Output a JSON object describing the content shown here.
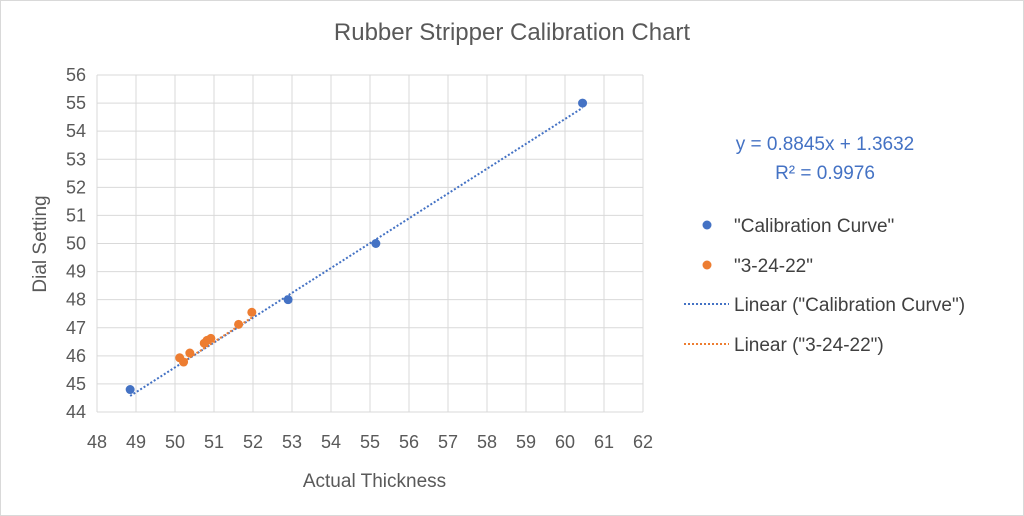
{
  "chart_data": {
    "type": "scatter",
    "title": "Rubber Stripper Calibration Chart",
    "xlabel": "Actual Thickness",
    "ylabel": "Dial Setting",
    "xlim": [
      48,
      62
    ],
    "ylim": [
      44,
      56
    ],
    "x_ticks": [
      48,
      49,
      50,
      51,
      52,
      53,
      54,
      55,
      56,
      57,
      58,
      59,
      60,
      61,
      62
    ],
    "y_ticks": [
      44,
      45,
      46,
      47,
      48,
      49,
      50,
      51,
      52,
      53,
      54,
      55,
      56
    ],
    "grid": "vertical and horizontal gridlines",
    "legend_position": "right",
    "series": [
      {
        "name": "\"Calibration Curve\"",
        "color": "#4472c4",
        "x": [
          48.85,
          52.9,
          55.15,
          60.45
        ],
        "y": [
          44.8,
          48.0,
          50.0,
          55.0
        ]
      },
      {
        "name": "\"3-24-22\"",
        "color": "#ed7d31",
        "x": [
          50.12,
          50.22,
          50.38,
          50.75,
          50.82,
          50.92,
          51.63,
          51.97
        ],
        "y": [
          45.93,
          45.78,
          46.1,
          46.45,
          46.55,
          46.62,
          47.12,
          47.55
        ]
      }
    ],
    "trendlines": [
      {
        "name": "Linear (\"Calibration Curve\")",
        "color": "#4472c4",
        "style": "dotted",
        "slope": 0.8845,
        "intercept": 1.3632,
        "x_range": [
          48.85,
          60.45
        ]
      },
      {
        "name": "Linear (\"3-24-22\")",
        "color": "#ed7d31",
        "style": "dotted",
        "slope": 0.895,
        "intercept": 0.85,
        "x_range": [
          50.12,
          51.97
        ]
      }
    ],
    "annotations": {
      "equation": "y = 0.8845x + 1.3632",
      "r_squared": "R² = 0.9976"
    }
  }
}
